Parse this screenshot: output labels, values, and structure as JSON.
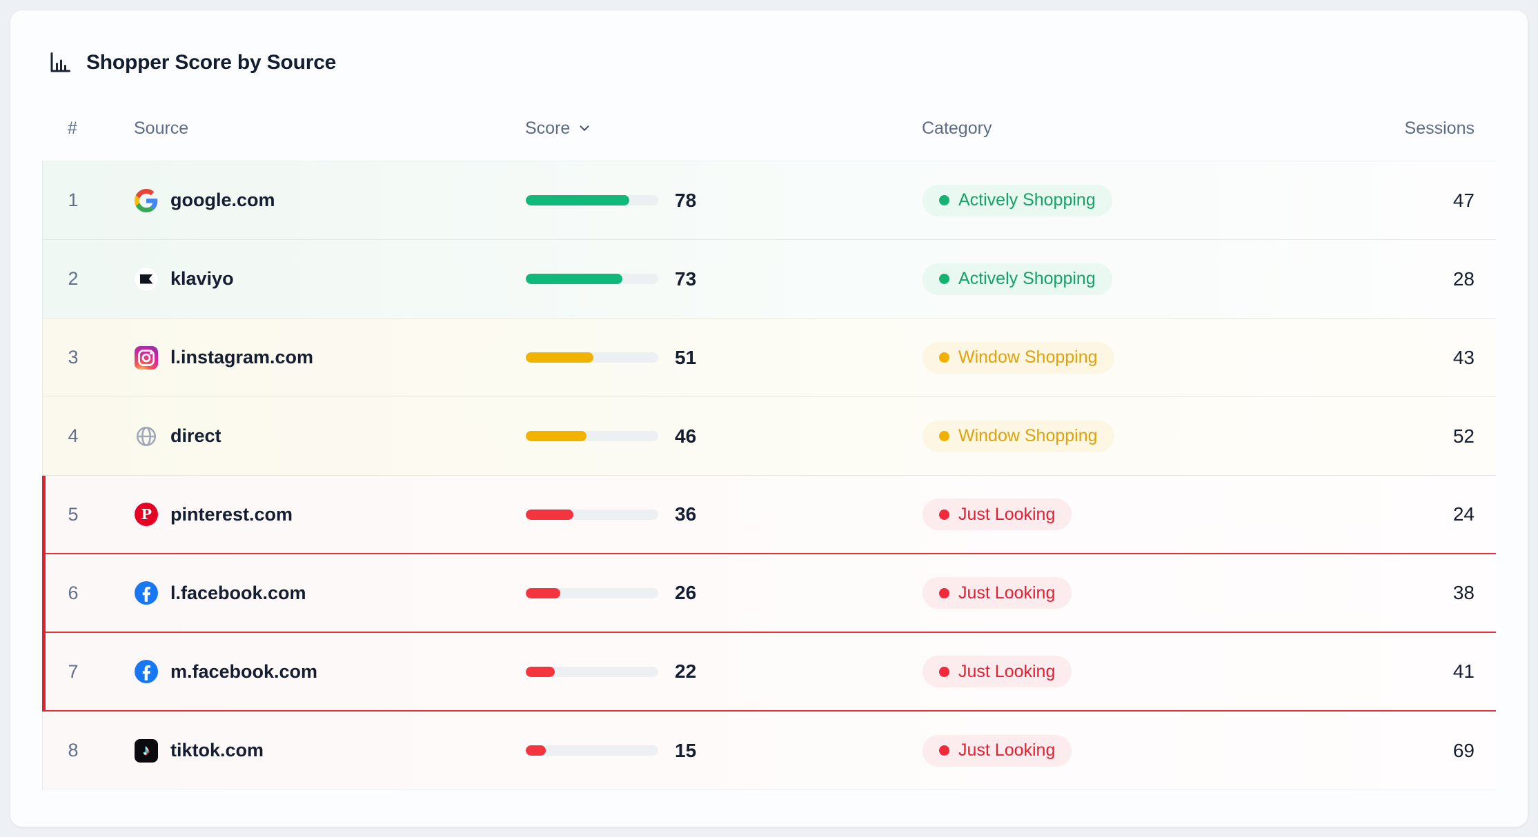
{
  "card": {
    "title": "Shopper Score by Source",
    "columns": {
      "rank": "#",
      "source": "Source",
      "score": "Score",
      "category": "Category",
      "sessions": "Sessions"
    },
    "score_sort_icon": "chevron-down-icon",
    "title_icon": "bar-chart-icon"
  },
  "rows": [
    {
      "rank": 1,
      "source": "google.com",
      "icon": "google-icon",
      "score": 78,
      "category": "Actively Shopping",
      "sessions": 47,
      "tier": "high",
      "flagged": false
    },
    {
      "rank": 2,
      "source": "klaviyo",
      "icon": "klaviyo-icon",
      "score": 73,
      "category": "Actively Shopping",
      "sessions": 28,
      "tier": "high",
      "flagged": false
    },
    {
      "rank": 3,
      "source": "l.instagram.com",
      "icon": "instagram-icon",
      "score": 51,
      "category": "Window Shopping",
      "sessions": 43,
      "tier": "mid",
      "flagged": false
    },
    {
      "rank": 4,
      "source": "direct",
      "icon": "globe-icon",
      "score": 46,
      "category": "Window Shopping",
      "sessions": 52,
      "tier": "mid",
      "flagged": false
    },
    {
      "rank": 5,
      "source": "pinterest.com",
      "icon": "pinterest-icon",
      "score": 36,
      "category": "Just Looking",
      "sessions": 24,
      "tier": "low",
      "flagged": true
    },
    {
      "rank": 6,
      "source": "l.facebook.com",
      "icon": "facebook-icon",
      "score": 26,
      "category": "Just Looking",
      "sessions": 38,
      "tier": "low",
      "flagged": true
    },
    {
      "rank": 7,
      "source": "m.facebook.com",
      "icon": "facebook-icon",
      "score": 22,
      "category": "Just Looking",
      "sessions": 41,
      "tier": "low",
      "flagged": true
    },
    {
      "rank": 8,
      "source": "tiktok.com",
      "icon": "tiktok-icon",
      "score": 15,
      "category": "Just Looking",
      "sessions": 69,
      "tier": "low",
      "flagged": false
    }
  ],
  "colors": {
    "score_high": "#10b97a",
    "score_mid": "#f2b200",
    "score_low": "#f43540",
    "badge_high_text": "#16a169",
    "badge_mid_text": "#dfa309",
    "badge_low_text": "#e61e31",
    "flag_outline": "#dc2330",
    "bar_track": "#edf0f3"
  }
}
